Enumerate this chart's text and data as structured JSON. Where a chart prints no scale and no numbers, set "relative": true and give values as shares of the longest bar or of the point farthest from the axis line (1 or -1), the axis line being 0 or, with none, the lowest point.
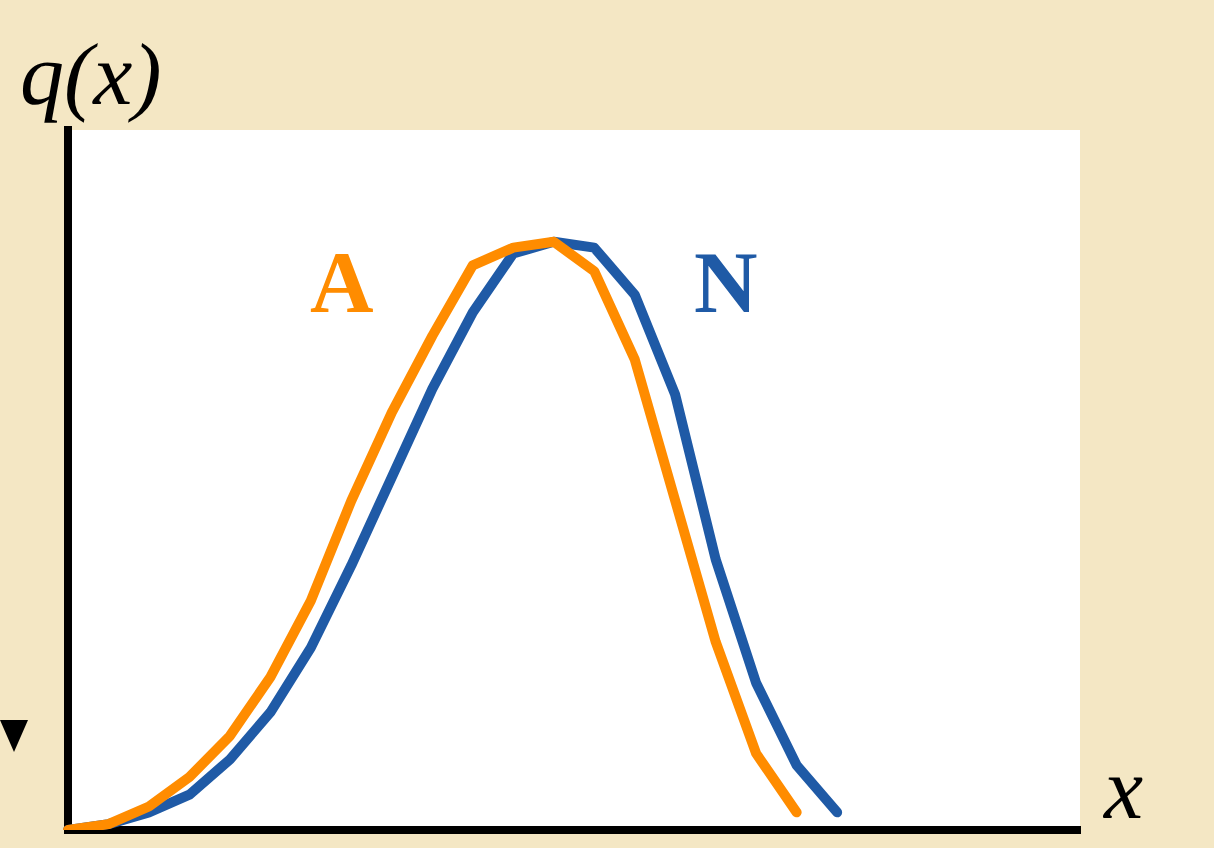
{
  "chart_data": {
    "type": "line",
    "title": "q(x)",
    "xlabel": "x",
    "relative": true,
    "grid": false,
    "legend": false,
    "marker": "none",
    "line_style": "solid",
    "categories": [
      null,
      null,
      null,
      null,
      null,
      null,
      null,
      null,
      null,
      null,
      null,
      null,
      null,
      null,
      null,
      null,
      null,
      null,
      null,
      null,
      null,
      null,
      null,
      null,
      null,
      null
    ],
    "series": [
      {
        "name": "A",
        "color": "#ff8c00",
        "values": [
          0,
          0.01,
          0.04,
          0.09,
          0.16,
          0.26,
          0.39,
          0.56,
          0.71,
          0.84,
          0.96,
          0.99,
          1,
          0.95,
          0.8,
          0.56,
          0.32,
          0.13,
          0.03,
          null,
          null,
          null,
          null,
          null,
          null,
          null
        ]
      },
      {
        "name": "N",
        "color": "#1f5aa6",
        "values": [
          0,
          0.01,
          0.03,
          0.06,
          0.12,
          0.2,
          0.31,
          0.45,
          0.6,
          0.75,
          0.88,
          0.98,
          1,
          0.99,
          0.91,
          0.74,
          0.46,
          0.25,
          0.11,
          0.03,
          null,
          null,
          null,
          null,
          null,
          null
        ]
      }
    ]
  }
}
